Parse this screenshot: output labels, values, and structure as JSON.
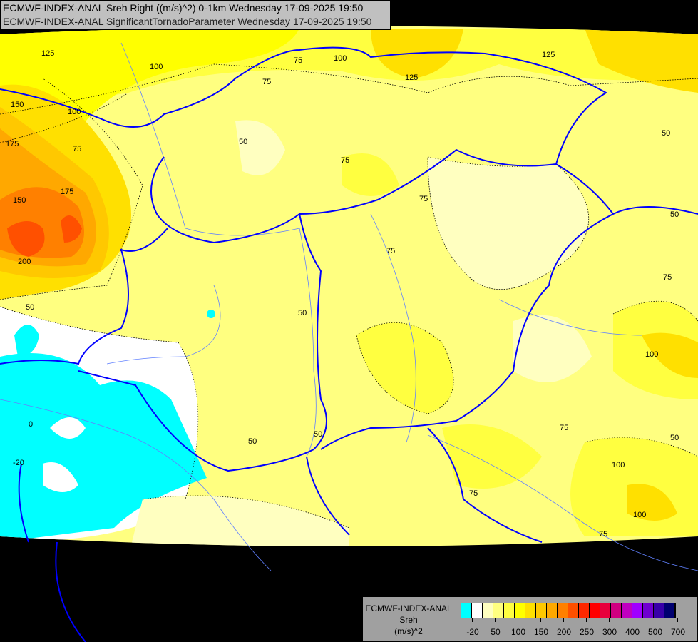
{
  "title": {
    "line1": "ECMWF-INDEX-ANAL Sreh Right ((m/s)^2) 0-1km Wednesday 17-09-2025 19:50",
    "line2": "ECMWF-INDEX-ANAL SignificantTornadoParameter Wednesday 17-09-2025 19:50"
  },
  "legend": {
    "model": "ECMWF-INDEX-ANAL",
    "variable": "Sreh",
    "unit": "(m/s)^2",
    "colors": [
      "#00ffff",
      "#ffffff",
      "#ffffc0",
      "#ffff80",
      "#ffff40",
      "#ffff00",
      "#ffe000",
      "#ffc800",
      "#ffa800",
      "#ff8000",
      "#ff5000",
      "#ff2800",
      "#ff0000",
      "#e8003c",
      "#d00080",
      "#c000c0",
      "#a000ff",
      "#7000d0",
      "#3800a8",
      "#000070"
    ],
    "tick_labels": [
      "-20",
      "50",
      "100",
      "150",
      "200",
      "250",
      "300",
      "400",
      "500",
      "700"
    ]
  },
  "map": {
    "background": "#000000",
    "border_color": "#0000ff",
    "river_color": "#6080ff",
    "contour_labels": [
      "125",
      "100",
      "75",
      "75",
      "100",
      "125",
      "125",
      "150",
      "175",
      "175",
      "150",
      "200",
      "100",
      "75",
      "50",
      "75",
      "75",
      "75",
      "50",
      "50",
      "50",
      "0",
      "-20",
      "50",
      "50",
      "75",
      "100",
      "75",
      "50",
      "100",
      "100",
      "75",
      "75",
      "50"
    ]
  }
}
